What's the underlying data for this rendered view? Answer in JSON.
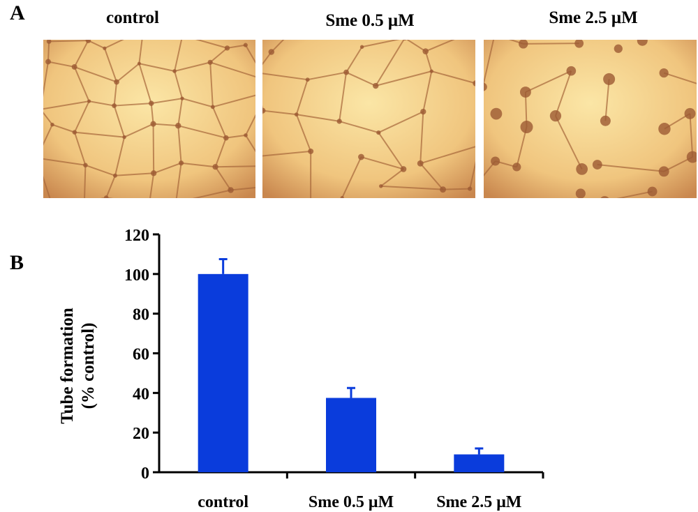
{
  "panels": {
    "a_label": "A",
    "b_label": "B"
  },
  "images": [
    {
      "title": "control",
      "network": "dense"
    },
    {
      "title": "Sme 0.5 μM",
      "network": "partial"
    },
    {
      "title": "Sme 2.5 μM",
      "network": "sparse"
    }
  ],
  "chart_data": {
    "type": "bar",
    "categories": [
      "control",
      "Sme 0.5 μM",
      "Sme 2.5 μM"
    ],
    "values": [
      100,
      37.5,
      9
    ],
    "errors": [
      7.5,
      5,
      3
    ],
    "ylabel_line1": "Tube formation",
    "ylabel_line2": "(% control)",
    "ylim": [
      0,
      120
    ],
    "yticks": [
      0,
      20,
      40,
      60,
      80,
      100,
      120
    ],
    "bar_color": "#0a3cdc",
    "grid": false
  }
}
